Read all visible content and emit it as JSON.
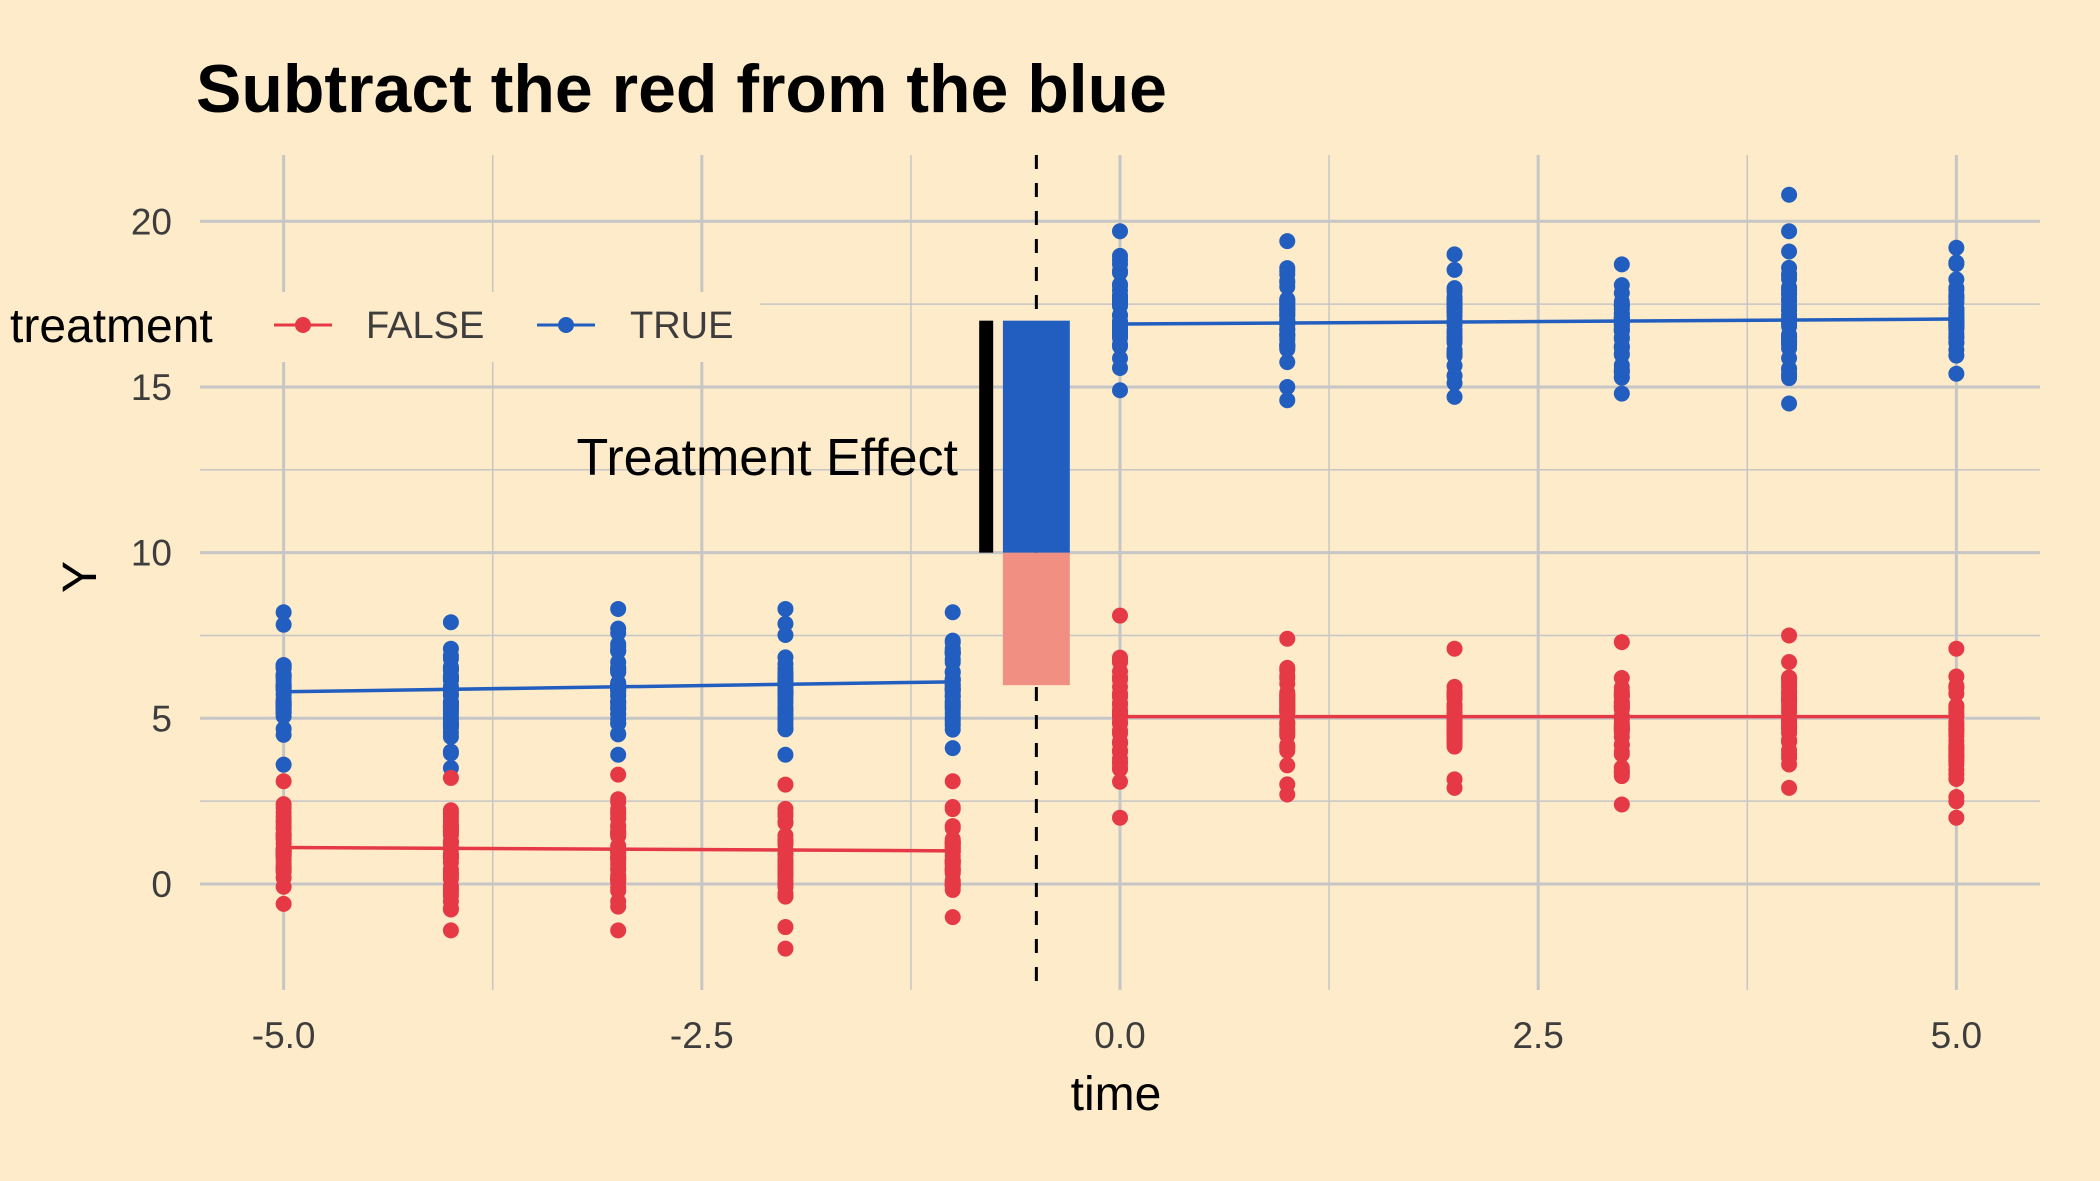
{
  "chart_data": {
    "type": "scatter",
    "title": "Subtract the red from the blue",
    "xlabel": "time",
    "ylabel": "Y",
    "xlim": [
      -5.5,
      5.5
    ],
    "ylim": [
      -3.2,
      22
    ],
    "xticks": [
      -5.0,
      -2.5,
      0.0,
      2.5,
      5.0
    ],
    "xtick_labels": [
      "-5.0",
      "-2.5",
      "0.0",
      "2.5",
      "5.0"
    ],
    "yticks": [
      0,
      5,
      10,
      15,
      20
    ],
    "ytick_labels": [
      "0",
      "5",
      "10",
      "15",
      "20"
    ],
    "grid": true,
    "legend": {
      "title": "treatment",
      "position": "top-left",
      "entries": [
        {
          "label": "FALSE",
          "color": "#e63946"
        },
        {
          "label": "TRUE",
          "color": "#225ebf"
        }
      ]
    },
    "vline": {
      "x": -0.5,
      "style": "dashed",
      "color": "#000000"
    },
    "series": [
      {
        "name": "TRUE",
        "color": "#225ebf",
        "points": [
          {
            "x": -5,
            "min": 3.6,
            "max": 8.2,
            "mean": 5.8,
            "outliers": []
          },
          {
            "x": -4,
            "min": 3.5,
            "max": 7.9,
            "mean": 5.9,
            "outliers": []
          },
          {
            "x": -3,
            "min": 3.9,
            "max": 8.3,
            "mean": 6.0,
            "outliers": []
          },
          {
            "x": -2,
            "min": 3.9,
            "max": 8.3,
            "mean": 6.0,
            "outliers": []
          },
          {
            "x": -1,
            "min": 4.1,
            "max": 8.2,
            "mean": 6.1,
            "outliers": []
          },
          {
            "x": 0,
            "min": 14.9,
            "max": 19.7,
            "mean": 16.9,
            "outliers": []
          },
          {
            "x": 1,
            "min": 15.0,
            "max": 19.4,
            "mean": 16.9,
            "outliers": [
              14.6
            ]
          },
          {
            "x": 2,
            "min": 14.7,
            "max": 19.0,
            "mean": 16.9,
            "outliers": []
          },
          {
            "x": 3,
            "min": 14.8,
            "max": 18.7,
            "mean": 17.0,
            "outliers": []
          },
          {
            "x": 4,
            "min": 14.5,
            "max": 19.7,
            "mean": 17.0,
            "outliers": [
              20.8
            ]
          },
          {
            "x": 5,
            "min": 15.4,
            "max": 19.2,
            "mean": 17.0,
            "outliers": []
          }
        ],
        "line": [
          [
            -5,
            5.8
          ],
          [
            -1,
            6.1
          ],
          [
            0,
            16.9
          ],
          [
            5,
            17.05
          ]
        ]
      },
      {
        "name": "FALSE",
        "color": "#e63946",
        "points": [
          {
            "x": -5,
            "min": -0.6,
            "max": 3.1,
            "mean": 1.1,
            "outliers": []
          },
          {
            "x": -4,
            "min": -1.4,
            "max": 3.2,
            "mean": 1.05,
            "outliers": []
          },
          {
            "x": -3,
            "min": -1.4,
            "max": 3.3,
            "mean": 1.05,
            "outliers": []
          },
          {
            "x": -2,
            "min": -1.3,
            "max": 3.0,
            "mean": 1.0,
            "outliers": [
              -1.95
            ]
          },
          {
            "x": -1,
            "min": -1.0,
            "max": 3.1,
            "mean": 1.0,
            "outliers": []
          },
          {
            "x": 0,
            "min": 2.0,
            "max": 8.1,
            "mean": 5.05,
            "outliers": []
          },
          {
            "x": 1,
            "min": 2.7,
            "max": 7.4,
            "mean": 5.05,
            "outliers": []
          },
          {
            "x": 2,
            "min": 2.9,
            "max": 7.1,
            "mean": 5.05,
            "outliers": []
          },
          {
            "x": 3,
            "min": 2.4,
            "max": 7.3,
            "mean": 5.05,
            "outliers": []
          },
          {
            "x": 4,
            "min": 2.9,
            "max": 7.5,
            "mean": 5.05,
            "outliers": []
          },
          {
            "x": 5,
            "min": 2.0,
            "max": 7.1,
            "mean": 5.05,
            "outliers": []
          }
        ],
        "line": [
          [
            -5,
            1.1
          ],
          [
            -1,
            1.0
          ],
          [
            0,
            5.05
          ],
          [
            5,
            5.05
          ]
        ]
      }
    ],
    "effect_bars": {
      "x_range": [
        -0.7,
        -0.3
      ],
      "blue": {
        "from": 10,
        "to": 17,
        "color": "#225ebf"
      },
      "red": {
        "from": 6,
        "to": 10,
        "color": "#f28f83"
      },
      "bracket": {
        "x": -0.8,
        "from": 10,
        "to": 17,
        "color": "#000000"
      }
    },
    "annotations": [
      {
        "text": "Treatment Effect",
        "x": -0.95,
        "y": 13
      }
    ]
  }
}
